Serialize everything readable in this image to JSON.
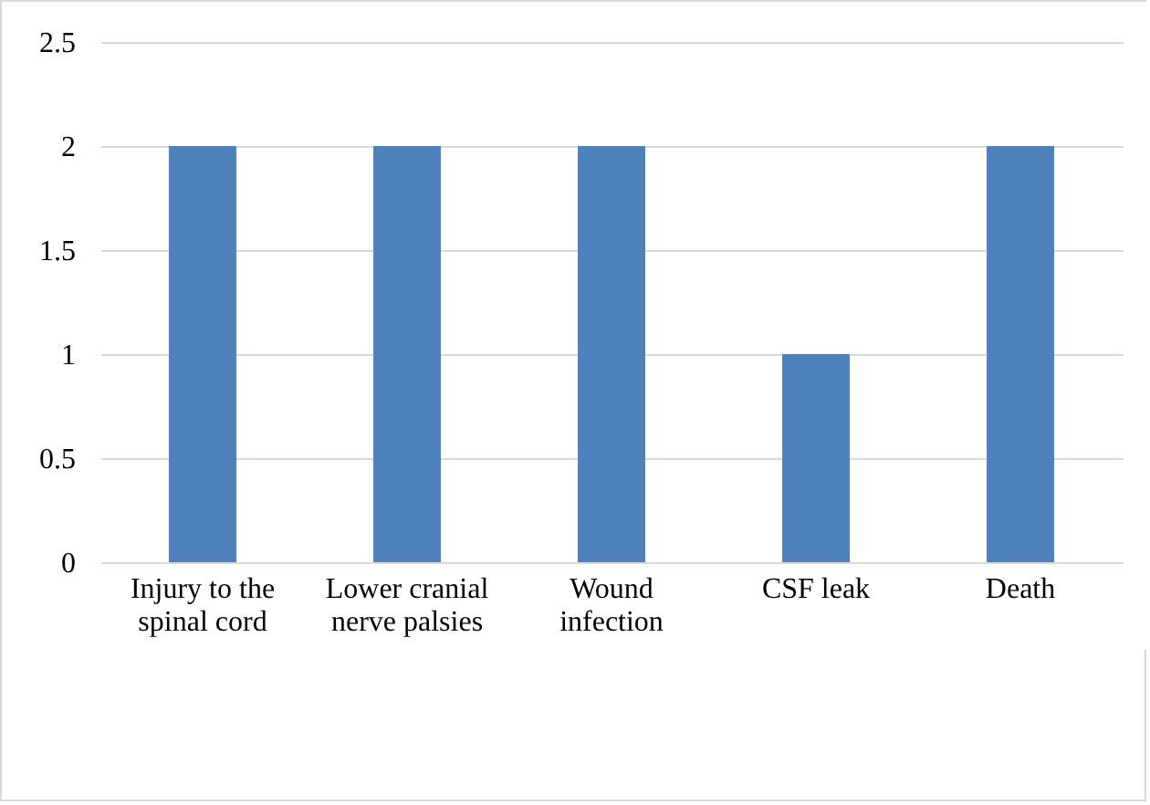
{
  "chart_data": {
    "type": "bar",
    "categories": [
      "Injury to the spinal cord",
      "Lower cranial nerve palsies",
      "Wound infection",
      "CSF leak",
      "Death"
    ],
    "values": [
      2,
      2,
      2,
      1,
      2
    ],
    "color": "#4f81bd",
    "ylim": [
      0,
      2.5
    ],
    "yticks": [
      0,
      0.5,
      1,
      1.5,
      2,
      2.5
    ],
    "grid": "y"
  }
}
